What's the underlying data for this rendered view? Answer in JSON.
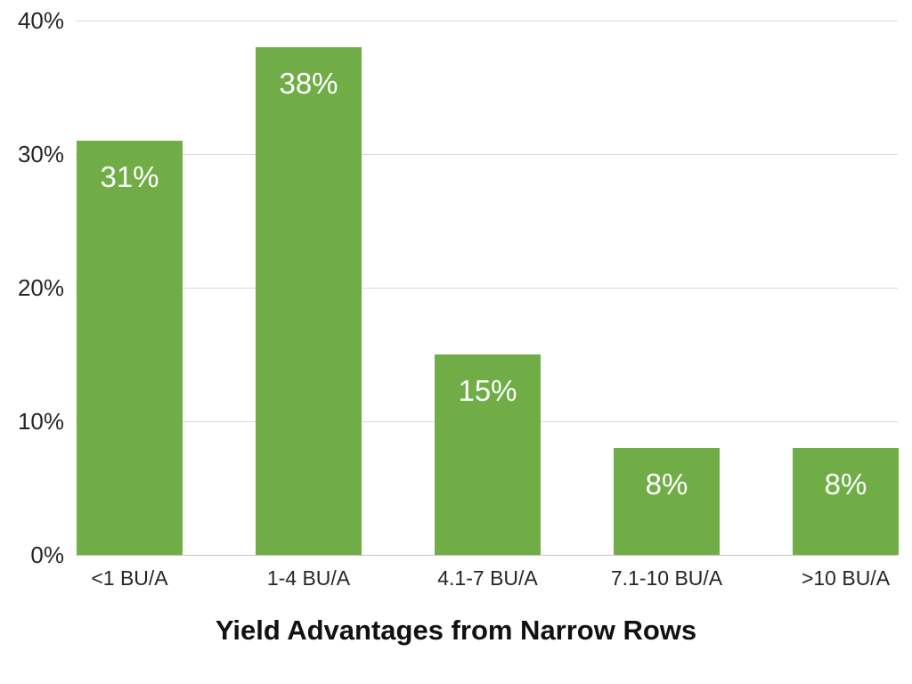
{
  "chart_data": {
    "type": "bar",
    "title": "Yield Advantages from Narrow Rows",
    "categories": [
      "<1 BU/A",
      "1-4 BU/A",
      "4.1-7 BU/A",
      "7.1-10 BU/A",
      ">10 BU/A"
    ],
    "values": [
      31,
      38,
      15,
      8,
      8
    ],
    "data_labels": [
      "31%",
      "38%",
      "15%",
      "8%",
      "8%"
    ],
    "ytick_values": [
      0,
      10,
      20,
      30,
      40
    ],
    "ytick_labels": [
      "0%",
      "10%",
      "20%",
      "30%",
      "40%"
    ],
    "ylim": [
      0,
      40
    ],
    "xlabel": "",
    "ylabel": "",
    "grid": "horizontal-only",
    "legend": "none",
    "colors": {
      "bar": "#70ad47",
      "bar_label_text": "#ffffff",
      "axis_text": "#262626",
      "gridline": "#d9d9d9",
      "baseline": "#c6c6c6",
      "title_text": "#111111",
      "background": "#ffffff"
    }
  }
}
